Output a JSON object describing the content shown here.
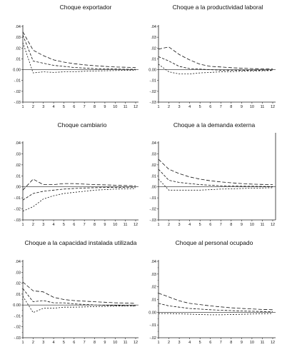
{
  "chart_data": [
    {
      "type": "line",
      "title": "Choque exportador",
      "x": [
        1,
        2,
        3,
        4,
        5,
        6,
        7,
        8,
        9,
        10,
        11,
        12
      ],
      "ylim": [
        -0.03,
        0.04
      ],
      "yticks": [
        ".04",
        ".03",
        ".02",
        ".01",
        "0.00",
        "-.01",
        "-.02",
        "-.03"
      ],
      "series": [
        {
          "style": "long-dash",
          "values": [
            0.035,
            0.018,
            0.013,
            0.009,
            0.007,
            0.0055,
            0.0045,
            0.0037,
            0.003,
            0.0025,
            0.0022,
            0.002
          ]
        },
        {
          "style": "dash",
          "values": [
            0.032,
            0.008,
            0.006,
            0.004,
            0.003,
            0.002,
            0.0015,
            0.001,
            0.0008,
            0.0006,
            0.0004,
            0.0003
          ]
        },
        {
          "style": "short-dash",
          "values": [
            0.025,
            -0.003,
            -0.002,
            -0.0025,
            -0.002,
            -0.002,
            -0.0015,
            -0.0012,
            -0.001,
            -0.0008,
            -0.0006,
            -0.0005
          ]
        }
      ]
    },
    {
      "type": "line",
      "title": "Choque a la productividad laboral",
      "x": [
        1,
        2,
        3,
        4,
        5,
        6,
        7,
        8,
        9,
        10,
        11,
        12
      ],
      "ylim": [
        -0.03,
        0.04
      ],
      "yticks": [
        ".04",
        ".03",
        ".02",
        ".01",
        "0.00",
        "-.01",
        "-.02",
        "-.03"
      ],
      "series": [
        {
          "style": "long-dash",
          "values": [
            0.019,
            0.021,
            0.014,
            0.009,
            0.005,
            0.003,
            0.0025,
            0.0018,
            0.0014,
            0.001,
            0.0008,
            0.0006
          ]
        },
        {
          "style": "dash",
          "values": [
            0.012,
            0.008,
            0.003,
            0.001,
            0.0005,
            0,
            -0.0005,
            -0.0006,
            -0.0007,
            -0.0006,
            -0.0005,
            -0.0004
          ]
        },
        {
          "style": "short-dash",
          "values": [
            0.005,
            -0.002,
            -0.004,
            -0.004,
            -0.003,
            -0.0025,
            -0.002,
            -0.0018,
            -0.0015,
            -0.0012,
            -0.001,
            -0.0008
          ]
        }
      ]
    },
    {
      "type": "line",
      "title": "Choque cambiario",
      "x": [
        1,
        2,
        3,
        4,
        5,
        6,
        7,
        8,
        9,
        10,
        11,
        12
      ],
      "ylim": [
        -0.03,
        0.04
      ],
      "yticks": [
        ".04",
        ".03",
        ".02",
        ".01",
        ".00",
        "-.01",
        "-.02",
        "-.03"
      ],
      "series": [
        {
          "style": "long-dash",
          "values": [
            -0.003,
            0.007,
            0.002,
            0.002,
            0.003,
            0.003,
            0.0025,
            0.002,
            0.0018,
            0.0015,
            0.0012,
            0.001
          ]
        },
        {
          "style": "dash",
          "values": [
            -0.012,
            -0.006,
            -0.004,
            -0.003,
            -0.002,
            -0.0015,
            -0.001,
            -0.0008,
            -0.0006,
            -0.0005,
            -0.0004,
            -0.0003
          ]
        },
        {
          "style": "short-dash",
          "values": [
            -0.022,
            -0.018,
            -0.011,
            -0.008,
            -0.006,
            -0.005,
            -0.004,
            -0.003,
            -0.0025,
            -0.002,
            -0.0018,
            -0.0015
          ]
        }
      ]
    },
    {
      "type": "line",
      "title": "Choque a la demanda externa",
      "x": [
        1,
        2,
        3,
        4,
        5,
        6,
        7,
        8,
        9,
        10,
        11,
        12
      ],
      "ylim": [
        -0.03,
        0.04
      ],
      "yticks": [
        ".04",
        ".03",
        ".02",
        ".01",
        ".00",
        "-.01",
        "-.02",
        "-.03"
      ],
      "series": [
        {
          "style": "long-dash",
          "values": [
            0.025,
            0.016,
            0.012,
            0.009,
            0.007,
            0.0055,
            0.0045,
            0.0037,
            0.003,
            0.0025,
            0.0022,
            0.002
          ]
        },
        {
          "style": "dash",
          "values": [
            0.016,
            0.006,
            0.004,
            0.003,
            0.002,
            0.0015,
            0.001,
            0.0008,
            0.0006,
            0.0005,
            0.0004,
            0.0003
          ]
        },
        {
          "style": "short-dash",
          "values": [
            0.007,
            -0.003,
            -0.003,
            -0.003,
            -0.003,
            -0.0025,
            -0.002,
            -0.0018,
            -0.0015,
            -0.0012,
            -0.001,
            -0.0008
          ]
        }
      ]
    },
    {
      "type": "line",
      "title": "Choque a la capacidad instalada utilizada",
      "x": [
        1,
        2,
        3,
        4,
        5,
        6,
        7,
        8,
        9,
        10,
        11,
        12
      ],
      "ylim": [
        -0.03,
        0.04
      ],
      "yticks": [
        ".04",
        ".03",
        ".02",
        ".01",
        "0.00",
        "-.01",
        "-.02",
        "-.03"
      ],
      "series": [
        {
          "style": "long-dash",
          "values": [
            0.021,
            0.013,
            0.012,
            0.007,
            0.005,
            0.004,
            0.0035,
            0.003,
            0.0025,
            0.002,
            0.0018,
            0.0015
          ]
        },
        {
          "style": "dash",
          "values": [
            0.015,
            0.003,
            0.004,
            0.002,
            0.002,
            0.001,
            0.0005,
            0,
            -0.0003,
            -0.0005,
            -0.0006,
            -0.0007
          ]
        },
        {
          "style": "short-dash",
          "values": [
            0.008,
            -0.007,
            -0.003,
            -0.003,
            -0.002,
            -0.002,
            -0.0018,
            -0.0015,
            -0.0013,
            -0.001,
            -0.0009,
            -0.0008
          ]
        }
      ]
    },
    {
      "type": "line",
      "title": "Choque al personal ocupado",
      "x": [
        1,
        2,
        3,
        4,
        5,
        6,
        7,
        8,
        9,
        10,
        11,
        12
      ],
      "ylim": [
        -0.02,
        0.04
      ],
      "yticks": [
        ".04",
        ".03",
        ".02",
        ".01",
        "0.00",
        "-.01",
        "-.02"
      ],
      "series": [
        {
          "style": "long-dash",
          "values": [
            0.015,
            0.012,
            0.009,
            0.007,
            0.006,
            0.005,
            0.0042,
            0.0035,
            0.003,
            0.0026,
            0.0022,
            0.002
          ]
        },
        {
          "style": "dash",
          "values": [
            0.007,
            0.005,
            0.004,
            0.003,
            0.0025,
            0.002,
            0.0016,
            0.0013,
            0.001,
            0.0008,
            0.0006,
            0.0005
          ]
        },
        {
          "style": "short-dash",
          "values": [
            -0.001,
            -0.001,
            -0.0012,
            -0.0015,
            -0.0018,
            -0.002,
            -0.002,
            -0.0018,
            -0.0016,
            -0.0014,
            -0.0012,
            -0.001
          ]
        }
      ]
    }
  ],
  "xticks": [
    "1",
    "2",
    "3",
    "4",
    "5",
    "6",
    "7",
    "8",
    "9",
    "10",
    "11",
    "12"
  ]
}
